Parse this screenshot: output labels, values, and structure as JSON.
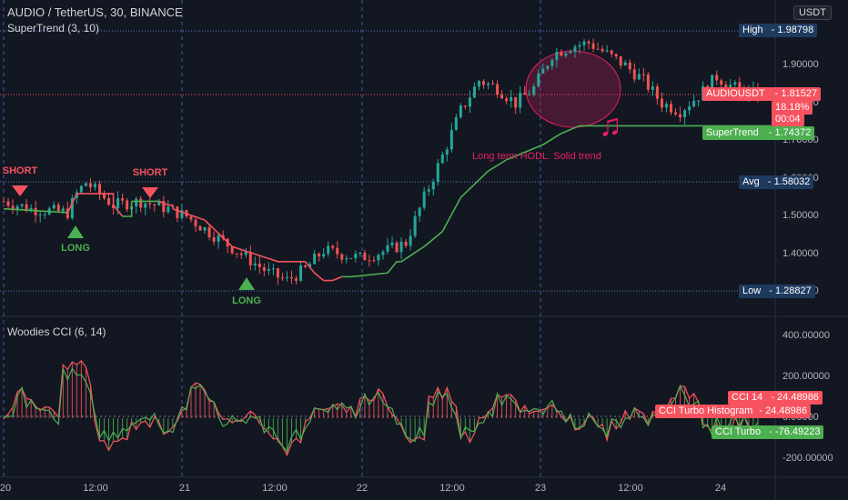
{
  "header": {
    "symbol_line": "AUDIO / TetherUS, 30, BINANCE",
    "indicator": "SuperTrend (3, 10)",
    "currency": "USDT"
  },
  "cci_panel": {
    "title": "Woodies CCI (6, 14)"
  },
  "price_axis": {
    "ticks": [
      "1.90000",
      "1.80000",
      "1.70000",
      "1.60000",
      "1.50000",
      "1.40000",
      "1.30000"
    ]
  },
  "cci_axis": {
    "ticks": [
      "400.00000",
      "200.00000",
      "0.00000",
      "-200.00000"
    ]
  },
  "time_axis": {
    "ticks": [
      "20",
      "12:00",
      "21",
      "12:00",
      "22",
      "12:00",
      "23",
      "12:00",
      "24"
    ]
  },
  "price_labels": {
    "high": {
      "name": "High",
      "value": "1.98798"
    },
    "last": {
      "name": "AUDIOUSDT",
      "value": "1.81527",
      "change": "18.18%",
      "countdown": "00:04"
    },
    "supertrend": {
      "name": "SuperTrend",
      "value": "1.74372"
    },
    "avg": {
      "name": "Avg",
      "value": "1.58032"
    },
    "low": {
      "name": "Low",
      "value": "1.28827"
    }
  },
  "cci_labels": {
    "cci14": {
      "name": "CCI 14",
      "value": "24.48986"
    },
    "hist": {
      "name": "CCI Turbo Histogram",
      "value": "24.48986"
    },
    "turbo": {
      "name": "CCI Turbo",
      "value": "-76.49223"
    }
  },
  "signals": {
    "short1": "SHORT",
    "short2": "SHORT",
    "long1": "LONG",
    "long2": "LONG"
  },
  "annotation": {
    "text": "Long term HODL. Solid trend",
    "icon": "music-note-icon"
  },
  "colors": {
    "up": "#26a69a",
    "down": "#ef5350",
    "supertrend_up": "#4caf50",
    "supertrend_down": "#f7525f",
    "cci14": "#f7525f",
    "turbo": "#4caf50",
    "annotation": "#e91e63",
    "background": "#131722"
  },
  "chart_data": [
    {
      "type": "line",
      "title": "AUDIO / TetherUS, 30, BINANCE",
      "ylim": [
        1.25,
        2.0
      ],
      "x_ticks": [
        "20",
        "12:00",
        "21",
        "12:00",
        "22",
        "12:00",
        "23",
        "12:00",
        "24"
      ],
      "series": [
        {
          "name": "SuperTrend",
          "points": [
            [
              0,
              1.52
            ],
            [
              14,
              1.51
            ],
            [
              16,
              1.56
            ],
            [
              23,
              1.56
            ],
            [
              24,
              1.53
            ],
            [
              26,
              1.5
            ],
            [
              27,
              1.5
            ],
            [
              28,
              1.54
            ],
            [
              34,
              1.54
            ],
            [
              36,
              1.53
            ],
            [
              37,
              1.52
            ],
            [
              44,
              1.49
            ],
            [
              50,
              1.42
            ],
            [
              60,
              1.38
            ],
            [
              66,
              1.38
            ],
            [
              68,
              1.35
            ],
            [
              70,
              1.33
            ],
            [
              72,
              1.33
            ],
            [
              74,
              1.34
            ],
            [
              76,
              1.34
            ],
            [
              84,
              1.35
            ],
            [
              86,
              1.38
            ],
            [
              87,
              1.38
            ],
            [
              92,
              1.42
            ],
            [
              96,
              1.46
            ],
            [
              100,
              1.55
            ],
            [
              106,
              1.62
            ],
            [
              110,
              1.65
            ],
            [
              112,
              1.66
            ],
            [
              118,
              1.69
            ],
            [
              122,
              1.72
            ],
            [
              126,
              1.74
            ],
            [
              160,
              1.74
            ],
            [
              168,
              1.74
            ]
          ]
        }
      ],
      "ohlc_summary": {
        "high": 1.98798,
        "low": 1.28827,
        "avg": 1.58032,
        "last": 1.81527
      }
    },
    {
      "type": "line",
      "title": "Woodies CCI (6, 14)",
      "ylim": [
        -250,
        450
      ],
      "series": [
        {
          "name": "CCI 14",
          "last": 24.48986
        },
        {
          "name": "CCI Turbo Histogram",
          "last": 24.48986
        },
        {
          "name": "CCI Turbo",
          "last": -76.49223
        }
      ]
    }
  ]
}
